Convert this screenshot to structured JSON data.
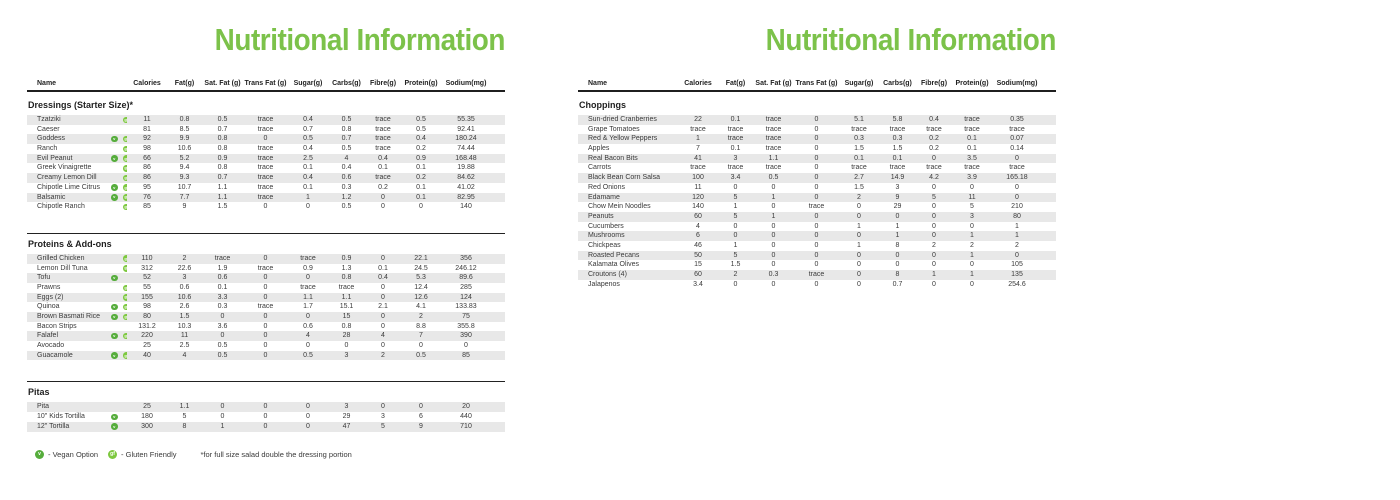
{
  "colors": {
    "brand_green": "#7cc24a",
    "badge_vegan_green": "#56ad3c",
    "badge_gluten_green": "#7dc83f",
    "row_stripe": "#e8e8e8",
    "rule": "#1f1f1f"
  },
  "legend": {
    "vegan": {
      "symbol": "v",
      "label": "- Vegan Option"
    },
    "gluten": {
      "symbol": "gf",
      "label": "- Gluten Friendly"
    },
    "footnote": "*for full size salad double the dressing portion"
  },
  "panels": [
    {
      "title": "Nutritional Information",
      "columns": [
        "Name",
        "Calories",
        "Fat(g)",
        "Sat. Fat (g)",
        "Trans Fat (g)",
        "Sugar(g)",
        "Carbs(g)",
        "Fibre(g)",
        "Protein(g)",
        "Sodium(mg)"
      ],
      "sections": [
        {
          "name": "Dressings (Starter Size)*",
          "rows": [
            {
              "name": "Tzatziki",
              "badges": [
                "gf"
              ],
              "values": [
                "11",
                "0.8",
                "0.5",
                "trace",
                "0.4",
                "0.5",
                "trace",
                "0.5",
                "55.35"
              ]
            },
            {
              "name": "Caeser",
              "badges": [],
              "values": [
                "81",
                "8.5",
                "0.7",
                "trace",
                "0.7",
                "0.8",
                "trace",
                "0.5",
                "92.41"
              ]
            },
            {
              "name": "Goddess",
              "badges": [
                "v",
                "gf"
              ],
              "values": [
                "92",
                "9.9",
                "0.8",
                "0",
                "0.5",
                "0.7",
                "trace",
                "0.4",
                "180.24"
              ]
            },
            {
              "name": "Ranch",
              "badges": [
                "gf"
              ],
              "values": [
                "98",
                "10.6",
                "0.8",
                "trace",
                "0.4",
                "0.5",
                "trace",
                "0.2",
                "74.44"
              ]
            },
            {
              "name": "Evil Peanut",
              "badges": [
                "v",
                "gf"
              ],
              "values": [
                "66",
                "5.2",
                "0.9",
                "trace",
                "2.5",
                "4",
                "0.4",
                "0.9",
                "168.48"
              ]
            },
            {
              "name": "Greek Vinaigrette",
              "badges": [
                "gf"
              ],
              "values": [
                "86",
                "9.4",
                "0.8",
                "trace",
                "0.1",
                "0.4",
                "0.1",
                "0.1",
                "19.88"
              ]
            },
            {
              "name": "Creamy Lemon Dill",
              "badges": [
                "gf"
              ],
              "values": [
                "86",
                "9.3",
                "0.7",
                "trace",
                "0.4",
                "0.6",
                "trace",
                "0.2",
                "84.62"
              ]
            },
            {
              "name": "Chipotle Lime Citrus",
              "badges": [
                "v",
                "gf"
              ],
              "values": [
                "95",
                "10.7",
                "1.1",
                "trace",
                "0.1",
                "0.3",
                "0.2",
                "0.1",
                "41.02"
              ]
            },
            {
              "name": "Balsamic",
              "badges": [
                "v",
                "gf"
              ],
              "values": [
                "76",
                "7.7",
                "1.1",
                "trace",
                "1",
                "1.2",
                "0",
                "0.1",
                "82.95"
              ]
            },
            {
              "name": "Chipotle Ranch",
              "badges": [
                "gf"
              ],
              "values": [
                "85",
                "9",
                "1.5",
                "0",
                "0",
                "0.5",
                "0",
                "0",
                "140"
              ]
            }
          ]
        },
        {
          "name": "Proteins & Add-ons",
          "rows": [
            {
              "name": "Grilled Chicken",
              "badges": [
                "gf"
              ],
              "values": [
                "110",
                "2",
                "trace",
                "0",
                "trace",
                "0.9",
                "0",
                "22.1",
                "356"
              ]
            },
            {
              "name": "Lemon Dill Tuna",
              "badges": [
                "gf"
              ],
              "values": [
                "312",
                "22.6",
                "1.9",
                "trace",
                "0.9",
                "1.3",
                "0.1",
                "24.5",
                "246.12"
              ]
            },
            {
              "name": "Tofu",
              "badges": [
                "v"
              ],
              "values": [
                "52",
                "3",
                "0.6",
                "0",
                "0",
                "0.8",
                "0.4",
                "5.3",
                "89.6"
              ]
            },
            {
              "name": "Prawns",
              "badges": [
                "gf"
              ],
              "values": [
                "55",
                "0.6",
                "0.1",
                "0",
                "trace",
                "trace",
                "0",
                "12.4",
                "285"
              ]
            },
            {
              "name": "Eggs (2)",
              "badges": [
                "gf"
              ],
              "values": [
                "155",
                "10.6",
                "3.3",
                "0",
                "1.1",
                "1.1",
                "0",
                "12.6",
                "124"
              ]
            },
            {
              "name": "Quinoa",
              "badges": [
                "v",
                "gf"
              ],
              "values": [
                "98",
                "2.6",
                "0.3",
                "trace",
                "1.7",
                "15.1",
                "2.1",
                "4.1",
                "133.83"
              ]
            },
            {
              "name": "Brown Basmati Rice",
              "badges": [
                "v",
                "gf"
              ],
              "values": [
                "80",
                "1.5",
                "0",
                "0",
                "0",
                "15",
                "0",
                "2",
                "75"
              ]
            },
            {
              "name": "Bacon Strips",
              "badges": [],
              "values": [
                "131.2",
                "10.3",
                "3.6",
                "0",
                "0.6",
                "0.8",
                "0",
                "8.8",
                "355.8"
              ]
            },
            {
              "name": "Falafel",
              "badges": [
                "v",
                "gf"
              ],
              "values": [
                "220",
                "11",
                "0",
                "0",
                "4",
                "28",
                "4",
                "7",
                "390"
              ]
            },
            {
              "name": "Avocado",
              "badges": [],
              "values": [
                "25",
                "2.5",
                "0.5",
                "0",
                "0",
                "0",
                "0",
                "0",
                "0"
              ]
            },
            {
              "name": "Guacamole",
              "badges": [
                "v",
                "gf"
              ],
              "values": [
                "40",
                "4",
                "0.5",
                "0",
                "0.5",
                "3",
                "2",
                "0.5",
                "85"
              ]
            }
          ]
        },
        {
          "name": "Pitas",
          "rows": [
            {
              "name": "Pita",
              "badges": [],
              "values": [
                "25",
                "1.1",
                "0",
                "0",
                "0",
                "3",
                "0",
                "0",
                "20"
              ]
            },
            {
              "name": "10\" Kids Tortilla",
              "badges": [
                "v"
              ],
              "values": [
                "180",
                "5",
                "0",
                "0",
                "0",
                "29",
                "3",
                "6",
                "440"
              ]
            },
            {
              "name": "12\" Tortilla",
              "badges": [
                "v"
              ],
              "values": [
                "300",
                "8",
                "1",
                "0",
                "0",
                "47",
                "5",
                "9",
                "710"
              ]
            }
          ]
        }
      ]
    },
    {
      "title": "Nutritional Information",
      "columns": [
        "Name",
        "Calories",
        "Fat(g)",
        "Sat. Fat (g)",
        "Trans Fat (g)",
        "Sugar(g)",
        "Carbs(g)",
        "Fibre(g)",
        "Protein(g)",
        "Sodium(mg)"
      ],
      "sections": [
        {
          "name": "Choppings",
          "rows": [
            {
              "name": "Sun-dried Cranberries",
              "badges": [],
              "values": [
                "22",
                "0.1",
                "trace",
                "0",
                "5.1",
                "5.8",
                "0.4",
                "trace",
                "0.35"
              ]
            },
            {
              "name": "Grape Tomatoes",
              "badges": [],
              "values": [
                "trace",
                "trace",
                "trace",
                "0",
                "trace",
                "trace",
                "trace",
                "trace",
                "trace"
              ]
            },
            {
              "name": "Red & Yellow Peppers",
              "badges": [],
              "values": [
                "1",
                "trace",
                "trace",
                "0",
                "0.3",
                "0.3",
                "0.2",
                "0.1",
                "0.07"
              ]
            },
            {
              "name": "Apples",
              "badges": [],
              "values": [
                "7",
                "0.1",
                "trace",
                "0",
                "1.5",
                "1.5",
                "0.2",
                "0.1",
                "0.14"
              ]
            },
            {
              "name": "Real Bacon Bits",
              "badges": [],
              "values": [
                "41",
                "3",
                "1.1",
                "0",
                "0.1",
                "0.1",
                "0",
                "3.5",
                "0"
              ]
            },
            {
              "name": "Carrots",
              "badges": [],
              "values": [
                "trace",
                "trace",
                "trace",
                "0",
                "trace",
                "trace",
                "trace",
                "trace",
                "trace"
              ]
            },
            {
              "name": "Black Bean Corn Salsa",
              "badges": [],
              "values": [
                "100",
                "3.4",
                "0.5",
                "0",
                "2.7",
                "14.9",
                "4.2",
                "3.9",
                "165.18"
              ]
            },
            {
              "name": "Red Onions",
              "badges": [],
              "values": [
                "11",
                "0",
                "0",
                "0",
                "1.5",
                "3",
                "0",
                "0",
                "0"
              ]
            },
            {
              "name": "Edamame",
              "badges": [],
              "values": [
                "120",
                "5",
                "1",
                "0",
                "2",
                "9",
                "5",
                "11",
                "0"
              ]
            },
            {
              "name": "Chow Mein Noodles",
              "badges": [],
              "values": [
                "140",
                "1",
                "0",
                "trace",
                "0",
                "29",
                "0",
                "5",
                "210"
              ]
            },
            {
              "name": "Peanuts",
              "badges": [],
              "values": [
                "60",
                "5",
                "1",
                "0",
                "0",
                "0",
                "0",
                "3",
                "80"
              ]
            },
            {
              "name": "Cucumbers",
              "badges": [],
              "values": [
                "4",
                "0",
                "0",
                "0",
                "1",
                "1",
                "0",
                "0",
                "1"
              ]
            },
            {
              "name": "Mushrooms",
              "badges": [],
              "values": [
                "6",
                "0",
                "0",
                "0",
                "0",
                "1",
                "0",
                "1",
                "1"
              ]
            },
            {
              "name": "Chickpeas",
              "badges": [],
              "values": [
                "46",
                "1",
                "0",
                "0",
                "1",
                "8",
                "2",
                "2",
                "2"
              ]
            },
            {
              "name": "Roasted Pecans",
              "badges": [],
              "values": [
                "50",
                "5",
                "0",
                "0",
                "0",
                "0",
                "0",
                "1",
                "0"
              ]
            },
            {
              "name": "Kalamata Olives",
              "badges": [],
              "values": [
                "15",
                "1.5",
                "0",
                "0",
                "0",
                "0",
                "0",
                "0",
                "105"
              ]
            },
            {
              "name": "Croutons (4)",
              "badges": [],
              "values": [
                "60",
                "2",
                "0.3",
                "trace",
                "0",
                "8",
                "1",
                "1",
                "135"
              ]
            },
            {
              "name": "Jalapenos",
              "badges": [],
              "values": [
                "3.4",
                "0",
                "0",
                "0",
                "0",
                "0.7",
                "0",
                "0",
                "254.6"
              ]
            }
          ]
        }
      ]
    }
  ]
}
